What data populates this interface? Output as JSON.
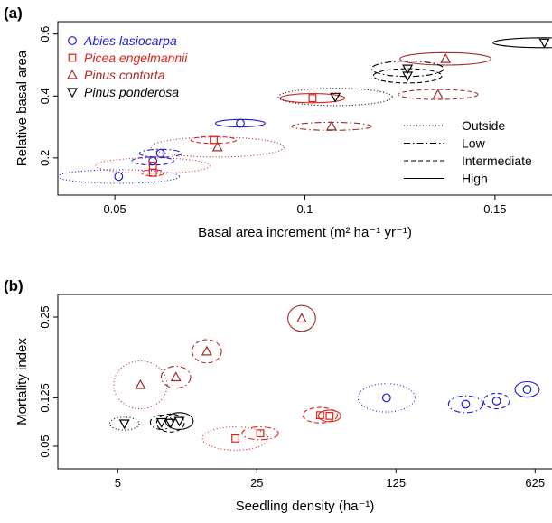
{
  "chart_data": [
    {
      "panel": "(a)",
      "type": "scatter",
      "xlabel": "Basal area increment (m² ha⁻¹ yr⁻¹)",
      "ylabel": "Relative basal area",
      "xlim": [
        0.035,
        0.165
      ],
      "ylim": [
        0.08,
        0.64
      ],
      "x_ticks": [
        {
          "v": 0.05,
          "label": "0.05"
        },
        {
          "v": 0.1,
          "label": "0.1"
        },
        {
          "v": 0.15,
          "label": "0.15"
        }
      ],
      "y_ticks": [
        {
          "v": 0.2,
          "label": "0.2"
        },
        {
          "v": 0.4,
          "label": "0.4"
        },
        {
          "v": 0.6,
          "label": "0.6"
        }
      ],
      "legend_species": [
        {
          "name": "Abies lasiocarpa",
          "color": "#1a1adb",
          "marker": "circle"
        },
        {
          "name": "Picea engelmannii",
          "color": "#e0211a",
          "marker": "square"
        },
        {
          "name": "Pinus contorta",
          "color": "#a52a2a",
          "marker": "triangle-up"
        },
        {
          "name": "Pinus ponderosa",
          "color": "#000000",
          "marker": "triangle-down"
        }
      ],
      "legend_treatment": [
        {
          "name": "Outside",
          "dash": "1,2.5"
        },
        {
          "name": "Low",
          "dash": "7,3,1.5,3"
        },
        {
          "name": "Intermediate",
          "dash": "5,3"
        },
        {
          "name": "High",
          "dash": ""
        }
      ],
      "points": [
        {
          "species": "Abies lasiocarpa",
          "level": "Outside",
          "x": 0.051,
          "y": 0.14,
          "ex": 0.016,
          "ey": 0.022
        },
        {
          "species": "Abies lasiocarpa",
          "level": "Low",
          "x": 0.062,
          "y": 0.215,
          "ex": 0.0055,
          "ey": 0.013
        },
        {
          "species": "Abies lasiocarpa",
          "level": "Intermediate",
          "x": 0.06,
          "y": 0.19,
          "ex": 0.0055,
          "ey": 0.013
        },
        {
          "species": "Abies lasiocarpa",
          "level": "High",
          "x": 0.083,
          "y": 0.312,
          "ex": 0.0065,
          "ey": 0.012
        },
        {
          "species": "Picea engelmannii",
          "level": "Outside",
          "x": 0.06,
          "y": 0.175,
          "ex": 0.015,
          "ey": 0.025
        },
        {
          "species": "Picea engelmannii",
          "level": "Low",
          "x": 0.06,
          "y": 0.152,
          "ex": 0.003,
          "ey": 0.01
        },
        {
          "species": "Picea engelmannii",
          "level": "Intermediate",
          "x": 0.076,
          "y": 0.258,
          "ex": 0.006,
          "ey": 0.011
        },
        {
          "species": "Picea engelmannii",
          "level": "High",
          "x": 0.102,
          "y": 0.393,
          "ex": 0.0085,
          "ey": 0.015
        },
        {
          "species": "Pinus contorta",
          "level": "Outside",
          "x": 0.077,
          "y": 0.235,
          "ex": 0.0175,
          "ey": 0.032
        },
        {
          "species": "Pinus contorta",
          "level": "Low",
          "x": 0.107,
          "y": 0.302,
          "ex": 0.0105,
          "ey": 0.013
        },
        {
          "species": "Pinus contorta",
          "level": "Intermediate",
          "x": 0.135,
          "y": 0.405,
          "ex": 0.0105,
          "ey": 0.016
        },
        {
          "species": "Pinus contorta",
          "level": "High",
          "x": 0.137,
          "y": 0.52,
          "ex": 0.012,
          "ey": 0.02
        },
        {
          "species": "Pinus ponderosa",
          "level": "Outside",
          "x": 0.108,
          "y": 0.397,
          "ex": 0.015,
          "ey": 0.028
        },
        {
          "species": "Pinus ponderosa",
          "level": "Low",
          "x": 0.127,
          "y": 0.488,
          "ex": 0.0095,
          "ey": 0.025
        },
        {
          "species": "Pinus ponderosa",
          "level": "Intermediate",
          "x": 0.127,
          "y": 0.465,
          "ex": 0.009,
          "ey": 0.023
        },
        {
          "species": "Pinus ponderosa",
          "level": "High",
          "x": 0.163,
          "y": 0.572,
          "ex": 0.0135,
          "ey": 0.016
        }
      ]
    },
    {
      "panel": "(b)",
      "type": "scatter",
      "xlabel": "Seedling density (ha⁻¹)",
      "ylabel": "Mortality index",
      "x_scale": "log",
      "xlim": [
        2.5,
        760
      ],
      "ylim": [
        0.015,
        0.285
      ],
      "x_ticks": [
        {
          "v": 5,
          "label": "5"
        },
        {
          "v": 25,
          "label": "25"
        },
        {
          "v": 125,
          "label": "125"
        },
        {
          "v": 625,
          "label": "625"
        }
      ],
      "y_ticks": [
        {
          "v": 0.05,
          "label": "0.05"
        },
        {
          "v": 0.125,
          "label": "0.125"
        },
        {
          "v": 0.25,
          "label": "0.25"
        }
      ],
      "points": [
        {
          "species": "Abies lasiocarpa",
          "level": "Outside",
          "x": 112,
          "y": 0.125,
          "ex": 0.33,
          "ey": 0.022
        },
        {
          "species": "Abies lasiocarpa",
          "level": "Low",
          "x": 280,
          "y": 0.115,
          "ex": 0.2,
          "ey": 0.013
        },
        {
          "species": "Abies lasiocarpa",
          "level": "Intermediate",
          "x": 400,
          "y": 0.12,
          "ex": 0.15,
          "ey": 0.012
        },
        {
          "species": "Abies lasiocarpa",
          "level": "High",
          "x": 570,
          "y": 0.138,
          "ex": 0.14,
          "ey": 0.012
        },
        {
          "species": "Picea engelmannii",
          "level": "Outside",
          "x": 19.5,
          "y": 0.062,
          "ex": 0.38,
          "ey": 0.018
        },
        {
          "species": "Picea engelmannii",
          "level": "Low",
          "x": 26,
          "y": 0.07,
          "ex": 0.21,
          "ey": 0.01
        },
        {
          "species": "Picea engelmannii",
          "level": "Intermediate",
          "x": 52,
          "y": 0.098,
          "ex": 0.2,
          "ey": 0.012
        },
        {
          "species": "Picea engelmannii",
          "level": "High",
          "x": 58,
          "y": 0.097,
          "ex": 0.13,
          "ey": 0.009
        },
        {
          "species": "Pinus contorta",
          "level": "Outside",
          "x": 6.5,
          "y": 0.145,
          "ex": 0.31,
          "ey": 0.037
        },
        {
          "species": "Pinus contorta",
          "level": "Low",
          "x": 9.8,
          "y": 0.157,
          "ex": 0.17,
          "ey": 0.017
        },
        {
          "species": "Pinus contorta",
          "level": "Intermediate",
          "x": 14,
          "y": 0.197,
          "ex": 0.17,
          "ey": 0.018
        },
        {
          "species": "Pinus contorta",
          "level": "High",
          "x": 42,
          "y": 0.248,
          "ex": 0.16,
          "ey": 0.02
        },
        {
          "species": "Pinus ponderosa",
          "level": "Outside",
          "x": 5.4,
          "y": 0.085,
          "ex": 0.17,
          "ey": 0.01
        },
        {
          "species": "Pinus ponderosa",
          "level": "Low",
          "x": 8.3,
          "y": 0.087,
          "ex": 0.13,
          "ey": 0.011
        },
        {
          "species": "Pinus ponderosa",
          "level": "Intermediate",
          "x": 9.2,
          "y": 0.086,
          "ex": 0.16,
          "ey": 0.014
        },
        {
          "species": "Pinus ponderosa",
          "level": "High",
          "x": 10.2,
          "y": 0.089,
          "ex": 0.16,
          "ey": 0.013
        }
      ]
    }
  ]
}
